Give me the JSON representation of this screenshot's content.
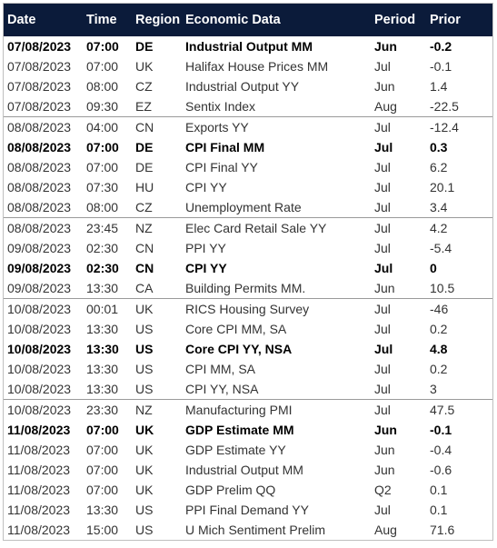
{
  "header": {
    "date": "Date",
    "time": "Time",
    "region": "Region",
    "econ": "Economic Data",
    "period": "Period",
    "prior": "Prior"
  },
  "rows": [
    {
      "date": "07/08/2023",
      "time": "07:00",
      "region": "DE",
      "econ": "Industrial Output MM",
      "period": "Jun",
      "prior": "-0.2",
      "bold": true,
      "sectionStart": false
    },
    {
      "date": "07/08/2023",
      "time": "07:00",
      "region": "UK",
      "econ": "Halifax House Prices MM",
      "period": "Jul",
      "prior": "-0.1",
      "bold": false,
      "sectionStart": false
    },
    {
      "date": "07/08/2023",
      "time": "08:00",
      "region": "CZ",
      "econ": "Industrial Output YY",
      "period": "Jun",
      "prior": "1.4",
      "bold": false,
      "sectionStart": false
    },
    {
      "date": "07/08/2023",
      "time": "09:30",
      "region": "EZ",
      "econ": "Sentix Index",
      "period": "Aug",
      "prior": "-22.5",
      "bold": false,
      "sectionStart": false
    },
    {
      "date": "08/08/2023",
      "time": "04:00",
      "region": "CN",
      "econ": "Exports YY",
      "period": "Jul",
      "prior": "-12.4",
      "bold": false,
      "sectionStart": true
    },
    {
      "date": "08/08/2023",
      "time": "07:00",
      "region": "DE",
      "econ": "CPI Final MM",
      "period": "Jul",
      "prior": "0.3",
      "bold": true,
      "sectionStart": false
    },
    {
      "date": "08/08/2023",
      "time": "07:00",
      "region": "DE",
      "econ": "CPI Final YY",
      "period": "Jul",
      "prior": "6.2",
      "bold": false,
      "sectionStart": false
    },
    {
      "date": "08/08/2023",
      "time": "07:30",
      "region": "HU",
      "econ": "CPI YY",
      "period": "Jul",
      "prior": "20.1",
      "bold": false,
      "sectionStart": false
    },
    {
      "date": "08/08/2023",
      "time": "08:00",
      "region": "CZ",
      "econ": "Unemployment Rate",
      "period": "Jul",
      "prior": "3.4",
      "bold": false,
      "sectionStart": false
    },
    {
      "date": "08/08/2023",
      "time": "23:45",
      "region": "NZ",
      "econ": "Elec Card Retail Sale YY",
      "period": "Jul",
      "prior": "4.2",
      "bold": false,
      "sectionStart": true
    },
    {
      "date": "09/08/2023",
      "time": "02:30",
      "region": "CN",
      "econ": "PPI YY",
      "period": "Jul",
      "prior": "-5.4",
      "bold": false,
      "sectionStart": false
    },
    {
      "date": "09/08/2023",
      "time": "02:30",
      "region": "CN",
      "econ": "CPI YY",
      "period": "Jul",
      "prior": "0",
      "bold": true,
      "sectionStart": false
    },
    {
      "date": "09/08/2023",
      "time": "13:30",
      "region": "CA",
      "econ": "Building Permits MM.",
      "period": "Jun",
      "prior": "10.5",
      "bold": false,
      "sectionStart": false
    },
    {
      "date": "10/08/2023",
      "time": "00:01",
      "region": "UK",
      "econ": "RICS Housing Survey",
      "period": "Jul",
      "prior": "-46",
      "bold": false,
      "sectionStart": true
    },
    {
      "date": "10/08/2023",
      "time": "13:30",
      "region": "US",
      "econ": "Core CPI MM, SA",
      "period": "Jul",
      "prior": "0.2",
      "bold": false,
      "sectionStart": false
    },
    {
      "date": "10/08/2023",
      "time": "13:30",
      "region": "US",
      "econ": "Core CPI YY, NSA",
      "period": "Jul",
      "prior": "4.8",
      "bold": true,
      "sectionStart": false
    },
    {
      "date": "10/08/2023",
      "time": "13:30",
      "region": "US",
      "econ": "CPI MM, SA",
      "period": "Jul",
      "prior": "0.2",
      "bold": false,
      "sectionStart": false
    },
    {
      "date": "10/08/2023",
      "time": "13:30",
      "region": "US",
      "econ": "CPI YY, NSA",
      "period": "Jul",
      "prior": "3",
      "bold": false,
      "sectionStart": false
    },
    {
      "date": "10/08/2023",
      "time": "23:30",
      "region": "NZ",
      "econ": "Manufacturing PMI",
      "period": "Jul",
      "prior": "47.5",
      "bold": false,
      "sectionStart": true
    },
    {
      "date": "11/08/2023",
      "time": "07:00",
      "region": "UK",
      "econ": "GDP Estimate MM",
      "period": "Jun",
      "prior": "-0.1",
      "bold": true,
      "sectionStart": false
    },
    {
      "date": "11/08/2023",
      "time": "07:00",
      "region": "UK",
      "econ": "GDP Estimate YY",
      "period": "Jun",
      "prior": "-0.4",
      "bold": false,
      "sectionStart": false
    },
    {
      "date": "11/08/2023",
      "time": "07:00",
      "region": "UK",
      "econ": "Industrial Output MM",
      "period": "Jun",
      "prior": "-0.6",
      "bold": false,
      "sectionStart": false
    },
    {
      "date": "11/08/2023",
      "time": "07:00",
      "region": "UK",
      "econ": "GDP Prelim QQ",
      "period": "Q2",
      "prior": "0.1",
      "bold": false,
      "sectionStart": false
    },
    {
      "date": "11/08/2023",
      "time": "13:30",
      "region": "US",
      "econ": "PPI Final Demand YY",
      "period": "Jul",
      "prior": "0.1",
      "bold": false,
      "sectionStart": false
    },
    {
      "date": "11/08/2023",
      "time": "15:00",
      "region": "US",
      "econ": "U Mich Sentiment Prelim",
      "period": "Aug",
      "prior": "71.6",
      "bold": false,
      "sectionStart": false
    }
  ],
  "colors": {
    "header_bg": "#0b1b3a",
    "header_text": "#ffffff",
    "normal_text": "#333333",
    "bold_text": "#000000",
    "divider": "#9a9a9a"
  }
}
